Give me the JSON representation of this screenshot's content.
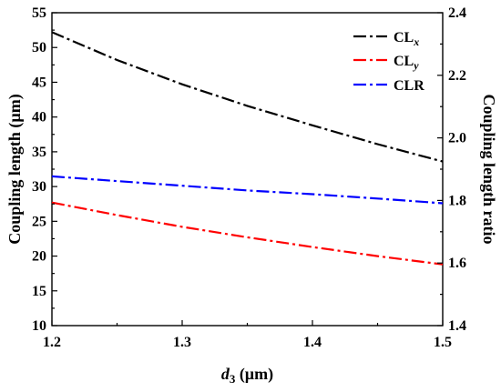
{
  "chart_data": {
    "type": "line",
    "x": [
      1.2,
      1.25,
      1.3,
      1.35,
      1.4,
      1.45,
      1.5
    ],
    "xlabel": "d3 (µm)",
    "xlabel_parts": {
      "var": "d",
      "sub": "3",
      "unit": "(µm)"
    },
    "xlim": [
      1.2,
      1.5
    ],
    "xticks": [
      "1.2",
      "1.3",
      "1.4",
      "1.5"
    ],
    "y_left": {
      "label": "Coupling length (µm)",
      "lim": [
        10,
        55
      ],
      "ticks": [
        "10",
        "15",
        "20",
        "25",
        "30",
        "35",
        "40",
        "45",
        "50",
        "55"
      ]
    },
    "y_right": {
      "label": "Coupling length ratio",
      "lim": [
        1.4,
        2.4
      ],
      "ticks": [
        "1.4",
        "1.6",
        "1.8",
        "2.0",
        "2.2",
        "2.4"
      ]
    },
    "series": [
      {
        "name": "CLx",
        "name_parts": {
          "base": "CL",
          "sub": "x"
        },
        "axis": "left",
        "color": "#000000",
        "line_style": "dash-dot",
        "values": [
          52.2,
          48.2,
          44.7,
          41.6,
          38.8,
          36.1,
          33.6
        ]
      },
      {
        "name": "CLy",
        "name_parts": {
          "base": "CL",
          "sub": "y"
        },
        "axis": "left",
        "color": "#ff0000",
        "line_style": "dash-dot",
        "values": [
          27.7,
          25.9,
          24.2,
          22.7,
          21.3,
          20.0,
          18.8
        ]
      },
      {
        "name": "CLR",
        "name_parts": {
          "base": "CLR",
          "sub": ""
        },
        "axis": "right",
        "color": "#0000ff",
        "line_style": "dash-dot",
        "values": [
          1.877,
          1.862,
          1.847,
          1.832,
          1.82,
          1.806,
          1.791
        ]
      }
    ],
    "legend_position": "top-right",
    "grid": false
  }
}
